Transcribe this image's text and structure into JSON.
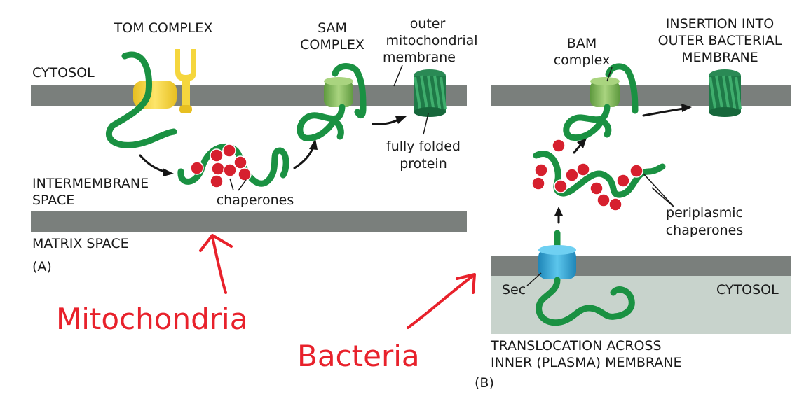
{
  "panel_a": {
    "tom_complex": "TOM COMPLEX",
    "sam_line1": "SAM",
    "sam_line2": "COMPLEX",
    "outer_line1": "outer",
    "outer_line2": "mitochondrial",
    "outer_line3": "membrane",
    "cytosol": "CYTOSOL",
    "folded_line1": "fully folded",
    "folded_line2": "protein",
    "ims_line1": "INTERMEMBRANE",
    "ims_line2": "SPACE",
    "chaperones": "chaperones",
    "matrix": "MATRIX SPACE",
    "panel_label": "(A)"
  },
  "panel_b": {
    "bam_line1": "BAM",
    "bam_line2": "complex",
    "insertion_line1": "INSERTION INTO",
    "insertion_line2": "OUTER BACTERIAL",
    "insertion_line3": "MEMBRANE",
    "peri_line1": "periplasmic",
    "peri_line2": "chaperones",
    "sec": "Sec",
    "cytosol": "CYTOSOL",
    "trans_line1": "TRANSLOCATION ACROSS",
    "trans_line2": "INNER (PLASMA) MEMBRANE",
    "panel_label": "(B)"
  },
  "annotations": {
    "mitochondria": "Mitochondria",
    "bacteria": "Bacteria"
  },
  "colors": {
    "membrane": "#7a7f7c",
    "chain": "#1a9142",
    "chaperone": "#d6202e",
    "tom": "#f5d63d",
    "sam_bam": "#8cc063",
    "sec": "#2fa6d6",
    "annotation": "#e8212b"
  }
}
